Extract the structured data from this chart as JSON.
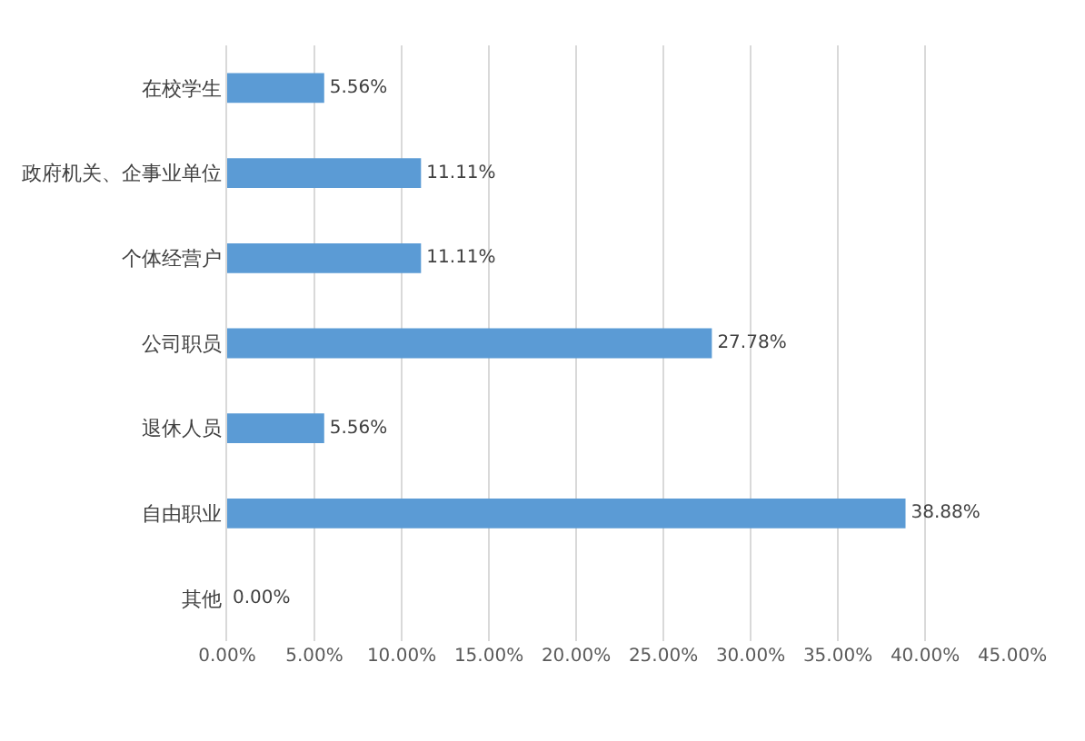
{
  "chart_data": {
    "type": "bar",
    "orientation": "horizontal",
    "categories": [
      "在校学生",
      "政府机关、企事业单位",
      "个体经营户",
      "公司职员",
      "退休人员",
      "自由职业",
      "其他"
    ],
    "values": [
      5.56,
      11.11,
      11.11,
      27.78,
      5.56,
      38.88,
      0.0
    ],
    "value_labels": [
      "5.56%",
      "11.11%",
      "11.11%",
      "27.78%",
      "5.56%",
      "38.88%",
      "0.00%"
    ],
    "color": "#5b9bd5",
    "xlim": [
      0,
      45
    ],
    "xticks": [
      {
        "value": 0,
        "label": "0.00%"
      },
      {
        "value": 5,
        "label": "5.00%"
      },
      {
        "value": 10,
        "label": "10.00%"
      },
      {
        "value": 15,
        "label": "15.00%"
      },
      {
        "value": 20,
        "label": "20.00%"
      },
      {
        "value": 25,
        "label": "25.00%"
      },
      {
        "value": 30,
        "label": "30.00%"
      },
      {
        "value": 35,
        "label": "35.00%"
      },
      {
        "value": 40,
        "label": "40.00%"
      },
      {
        "value": 45,
        "label": "45.00%"
      }
    ],
    "grid": "x",
    "legend": false
  }
}
